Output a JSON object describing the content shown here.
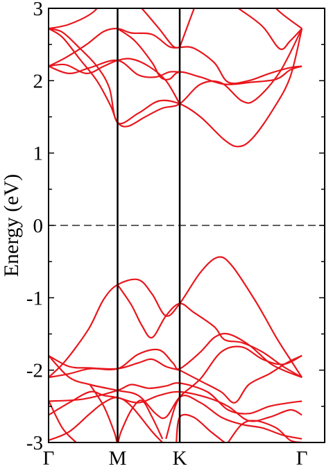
{
  "chart_data": {
    "type": "line",
    "title": "",
    "xlabel": "",
    "ylabel": "Energy (eV)",
    "ylim": [
      -3,
      3
    ],
    "y_ticks": [
      -3,
      -2,
      -1,
      0,
      1,
      2,
      3
    ],
    "y_tick_labels": [
      "-3",
      "-2",
      "-1",
      "0",
      "1",
      "2",
      "3"
    ],
    "x_range": [
      0,
      4
    ],
    "high_symmetry_points": [
      {
        "label": "Γ",
        "k": 0
      },
      {
        "label": "M",
        "k": 1
      },
      {
        "label": "K",
        "k": 1.9
      },
      {
        "label": "Γ",
        "k": 3.67
      }
    ],
    "fermi_level": 0,
    "grid": false,
    "legend": "none",
    "band_color": "#e8161c",
    "series": [
      {
        "values": [
          [
            0,
            2.72
          ],
          [
            0.2,
            2.67
          ],
          [
            0.45,
            2.45
          ],
          [
            0.7,
            2.2
          ],
          [
            0.88,
            1.9
          ],
          [
            1,
            1.42
          ],
          [
            1.3,
            1.55
          ],
          [
            1.6,
            1.72
          ],
          [
            1.9,
            1.68
          ],
          [
            2.2,
            1.5
          ],
          [
            2.55,
            1.18
          ],
          [
            2.75,
            1.09
          ],
          [
            2.95,
            1.2
          ],
          [
            3.25,
            1.6
          ],
          [
            3.5,
            2.05
          ],
          [
            3.67,
            2.72
          ]
        ]
      },
      {
        "values": [
          [
            0,
            2.72
          ],
          [
            0.2,
            2.6
          ],
          [
            0.45,
            2.3
          ],
          [
            0.7,
            2.0
          ],
          [
            0.9,
            1.65
          ],
          [
            1,
            1.42
          ],
          [
            1.15,
            1.37
          ],
          [
            1.4,
            1.5
          ],
          [
            1.65,
            1.62
          ],
          [
            1.9,
            1.68
          ],
          [
            2.2,
            1.95
          ],
          [
            2.5,
            1.97
          ],
          [
            2.8,
            1.72
          ],
          [
            3.0,
            1.74
          ],
          [
            3.35,
            2.12
          ],
          [
            3.67,
            2.72
          ]
        ]
      },
      {
        "values": [
          [
            0,
            2.2
          ],
          [
            0.25,
            2.22
          ],
          [
            0.55,
            2.1
          ],
          [
            0.8,
            2.2
          ],
          [
            1,
            2.28
          ],
          [
            1.2,
            2.3
          ],
          [
            1.45,
            2.2
          ],
          [
            1.7,
            2.0
          ],
          [
            1.9,
            1.68
          ]
        ]
      },
      {
        "values": [
          [
            0,
            2.2
          ],
          [
            0.25,
            2.32
          ],
          [
            0.55,
            2.5
          ],
          [
            0.8,
            2.68
          ],
          [
            1,
            2.72
          ],
          [
            1.2,
            2.66
          ],
          [
            1.5,
            2.64
          ],
          [
            1.75,
            2.47
          ],
          [
            1.9,
            2.46
          ]
        ]
      },
      {
        "values": [
          [
            0,
            2.2
          ],
          [
            0.3,
            2.1
          ],
          [
            0.6,
            2.18
          ],
          [
            1,
            2.28
          ],
          [
            1.3,
            2.08
          ],
          [
            1.55,
            2.05
          ],
          [
            1.75,
            2.12
          ],
          [
            1.9,
            2.12
          ]
        ]
      },
      {
        "values": [
          [
            0,
            2.72
          ],
          [
            0.3,
            2.78
          ],
          [
            0.65,
            2.95
          ],
          [
            0.85,
            3.2
          ]
        ]
      },
      {
        "values": [
          [
            1.15,
            3.2
          ],
          [
            1.35,
            3.0
          ],
          [
            1.6,
            2.72
          ],
          [
            1.8,
            2.48
          ],
          [
            1.9,
            2.46
          ]
        ]
      },
      {
        "values": [
          [
            1.0,
            2.72
          ],
          [
            1.25,
            2.55
          ],
          [
            1.5,
            2.25
          ],
          [
            1.62,
            2.05
          ],
          [
            1.75,
            2.02
          ],
          [
            1.9,
            2.12
          ],
          [
            2.2,
            2.05
          ],
          [
            2.55,
            1.95
          ],
          [
            2.95,
            1.98
          ],
          [
            3.3,
            2.02
          ],
          [
            3.5,
            2.15
          ],
          [
            3.67,
            2.2
          ]
        ]
      },
      {
        "values": [
          [
            1.9,
            2.46
          ],
          [
            2.1,
            2.45
          ],
          [
            2.4,
            2.25
          ],
          [
            2.6,
            1.98
          ],
          [
            2.9,
            2.0
          ],
          [
            3.2,
            2.1
          ],
          [
            3.5,
            2.18
          ],
          [
            3.67,
            2.2
          ]
        ]
      },
      {
        "values": [
          [
            1.9,
            2.46
          ],
          [
            2.05,
            2.85
          ],
          [
            2.15,
            3.1
          ]
        ]
      },
      {
        "values": [
          [
            2.45,
            3.2
          ],
          [
            2.75,
            3.0
          ],
          [
            3.1,
            2.75
          ],
          [
            3.35,
            2.44
          ],
          [
            3.5,
            2.55
          ],
          [
            3.67,
            2.72
          ]
        ]
      },
      {
        "values": [
          [
            3.1,
            3.2
          ],
          [
            3.35,
            2.95
          ],
          [
            3.67,
            2.72
          ]
        ]
      },
      {
        "values": [
          [
            0,
            -2.1
          ],
          [
            0.2,
            -1.92
          ],
          [
            0.4,
            -1.68
          ],
          [
            0.6,
            -1.4
          ],
          [
            0.8,
            -1.02
          ],
          [
            1,
            -0.82
          ],
          [
            1.3,
            -0.75
          ],
          [
            1.5,
            -0.95
          ],
          [
            1.7,
            -1.25
          ],
          [
            1.9,
            -1.08
          ],
          [
            2.2,
            -0.65
          ],
          [
            2.45,
            -0.44
          ],
          [
            2.65,
            -0.55
          ],
          [
            3.0,
            -1.05
          ],
          [
            3.3,
            -1.55
          ],
          [
            3.5,
            -1.85
          ],
          [
            3.67,
            -2.1
          ]
        ]
      },
      {
        "values": [
          [
            1.0,
            -0.82
          ],
          [
            1.2,
            -1.1
          ],
          [
            1.35,
            -1.38
          ],
          [
            1.5,
            -1.55
          ],
          [
            1.7,
            -1.25
          ],
          [
            1.9,
            -1.08
          ],
          [
            2.1,
            -1.2
          ],
          [
            2.4,
            -1.4
          ],
          [
            2.55,
            -1.58
          ],
          [
            2.8,
            -1.62
          ],
          [
            3.1,
            -1.75
          ],
          [
            3.4,
            -1.95
          ],
          [
            3.67,
            -2.1
          ]
        ]
      },
      {
        "values": [
          [
            0,
            -1.8
          ],
          [
            0.3,
            -1.95
          ],
          [
            0.6,
            -1.97
          ],
          [
            1,
            -1.98
          ],
          [
            1.3,
            -1.9
          ],
          [
            1.5,
            -1.85
          ],
          [
            1.7,
            -1.95
          ],
          [
            1.9,
            -2.0
          ]
        ]
      },
      {
        "values": [
          [
            0,
            -2.1
          ],
          [
            0.3,
            -2.05
          ],
          [
            0.6,
            -1.98
          ],
          [
            1,
            -1.98
          ],
          [
            1.3,
            -1.78
          ],
          [
            1.6,
            -1.72
          ],
          [
            1.8,
            -1.9
          ],
          [
            1.9,
            -1.98
          ],
          [
            2.2,
            -1.75
          ],
          [
            2.4,
            -1.55
          ],
          [
            2.6,
            -1.5
          ],
          [
            2.9,
            -1.65
          ],
          [
            3.2,
            -1.9
          ],
          [
            3.4,
            -2.0
          ],
          [
            3.67,
            -2.1
          ]
        ]
      },
      {
        "values": [
          [
            0,
            -1.8
          ],
          [
            0.3,
            -2.1
          ],
          [
            0.6,
            -2.2
          ],
          [
            1,
            -2.28
          ],
          [
            1.3,
            -2.35
          ],
          [
            1.55,
            -2.6
          ],
          [
            1.7,
            -2.65
          ],
          [
            1.9,
            -2.37
          ],
          [
            2.2,
            -2.12
          ],
          [
            2.5,
            -1.75
          ],
          [
            2.8,
            -1.68
          ],
          [
            3.1,
            -1.85
          ],
          [
            3.4,
            -1.92
          ],
          [
            3.67,
            -1.8
          ]
        ]
      },
      {
        "values": [
          [
            1.9,
            -2.0
          ],
          [
            2.2,
            -2.15
          ],
          [
            2.5,
            -2.3
          ],
          [
            2.7,
            -2.45
          ],
          [
            2.9,
            -2.2
          ],
          [
            3.2,
            -2.05
          ],
          [
            3.45,
            -1.9
          ],
          [
            3.67,
            -1.8
          ]
        ]
      },
      {
        "values": [
          [
            0,
            -2.43
          ],
          [
            0.5,
            -2.4
          ],
          [
            1,
            -2.28
          ],
          [
            1.2,
            -2.2
          ],
          [
            1.45,
            -2.25
          ],
          [
            1.7,
            -2.22
          ],
          [
            1.9,
            -2.18
          ],
          [
            2.3,
            -2.3
          ],
          [
            2.6,
            -2.55
          ],
          [
            2.9,
            -2.6
          ],
          [
            3.2,
            -2.5
          ],
          [
            3.5,
            -2.45
          ],
          [
            3.67,
            -2.43
          ]
        ]
      },
      {
        "values": [
          [
            0,
            -2.62
          ],
          [
            0.3,
            -2.45
          ],
          [
            0.6,
            -2.3
          ],
          [
            0.8,
            -2.35
          ],
          [
            1,
            -2.38
          ],
          [
            1.3,
            -2.45
          ],
          [
            1.6,
            -2.35
          ],
          [
            1.9,
            -2.3
          ],
          [
            2.3,
            -2.38
          ],
          [
            2.6,
            -2.5
          ],
          [
            2.9,
            -2.7
          ],
          [
            3.2,
            -2.65
          ],
          [
            3.5,
            -2.55
          ],
          [
            3.67,
            -2.62
          ]
        ]
      },
      {
        "values": [
          [
            0,
            -2.97
          ],
          [
            0.3,
            -2.85
          ],
          [
            0.6,
            -2.6
          ],
          [
            0.8,
            -2.45
          ],
          [
            1,
            -2.38
          ],
          [
            1.2,
            -2.5
          ],
          [
            1.5,
            -2.85
          ],
          [
            1.65,
            -3.0
          ]
        ]
      },
      {
        "values": [
          [
            0,
            -2.42
          ],
          [
            0.2,
            -2.8
          ],
          [
            0.4,
            -3.0
          ]
        ]
      },
      {
        "values": [
          [
            0.6,
            -2.2
          ],
          [
            0.8,
            -2.5
          ],
          [
            0.95,
            -2.85
          ],
          [
            1.0,
            -3.0
          ],
          [
            1.05,
            -2.85
          ],
          [
            1.2,
            -2.55
          ],
          [
            1.35,
            -2.42
          ],
          [
            1.5,
            -2.65
          ],
          [
            1.65,
            -2.95
          ]
        ]
      },
      {
        "values": [
          [
            1.7,
            -2.95
          ],
          [
            1.9,
            -2.38
          ],
          [
            2.2,
            -2.45
          ],
          [
            2.5,
            -2.65
          ],
          [
            2.8,
            -2.75
          ],
          [
            3.1,
            -2.8
          ],
          [
            3.4,
            -2.9
          ],
          [
            3.67,
            -2.95
          ]
        ]
      },
      {
        "values": [
          [
            1.85,
            -3.0
          ],
          [
            1.9,
            -2.65
          ],
          [
            2.1,
            -2.65
          ],
          [
            2.35,
            -2.85
          ],
          [
            2.55,
            -3.0
          ]
        ]
      },
      {
        "values": [
          [
            2.6,
            -3.0
          ],
          [
            2.8,
            -2.75
          ],
          [
            3.0,
            -2.7
          ],
          [
            3.3,
            -2.8
          ],
          [
            3.5,
            -2.97
          ],
          [
            3.67,
            -3.0
          ]
        ]
      }
    ]
  }
}
